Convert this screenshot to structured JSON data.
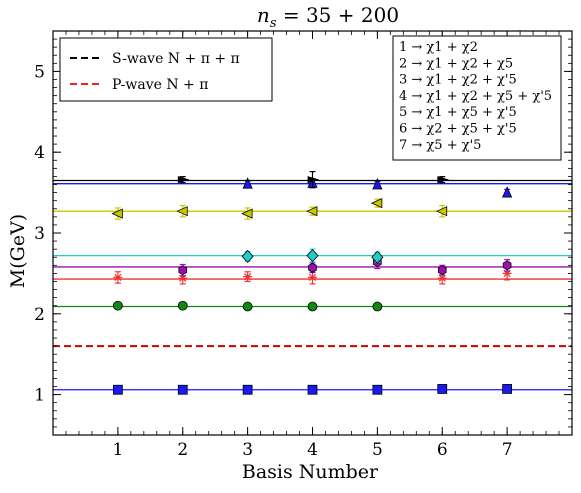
{
  "chart_data": {
    "type": "scatter",
    "title": "n_s = 35 + 200",
    "xlabel": "Basis Number",
    "ylabel": "M(GeV)",
    "xlim": [
      0,
      8
    ],
    "ylim": [
      0.5,
      5.5
    ],
    "xticks": [
      1,
      2,
      3,
      4,
      5,
      6,
      7
    ],
    "yticks": [
      1,
      2,
      3,
      4,
      5
    ],
    "grid": false,
    "reference_lines": [
      {
        "name": "S-wave N + π + π",
        "y": 1.6,
        "color": "#cc0000",
        "dashed": true,
        "legend_color": "#000000"
      },
      {
        "name": "P-wave N + π",
        "y": 1.6,
        "color": "#cc0000",
        "dashed": true,
        "legend_color": "#ee2222"
      }
    ],
    "legend_placement": "top-left",
    "basis_definitions": [
      "1 → χ1 + χ2",
      "2 → χ1 + χ2 + χ5",
      "3 → χ1 + χ2 + χ'5",
      "4 → χ1 + χ2 + χ5 + χ'5",
      "5 → χ1 + χ5 + χ'5",
      "6 → χ2 + χ5 + χ'5",
      "7 → χ5 + χ'5"
    ],
    "basis_box_placement": "top-right",
    "series": [
      {
        "fit": 1.06,
        "color": "#1a1aee",
        "marker": "square",
        "points": [
          [
            1,
            1.06,
            0.015
          ],
          [
            2,
            1.06,
            0.015
          ],
          [
            3,
            1.06,
            0.015
          ],
          [
            4,
            1.06,
            0.015
          ],
          [
            5,
            1.06,
            0.015
          ],
          [
            6,
            1.07,
            0.015
          ],
          [
            7,
            1.07,
            0.015
          ]
        ]
      },
      {
        "fit": 2.09,
        "color": "#118811",
        "marker": "circle",
        "points": [
          [
            1,
            2.1,
            0.02
          ],
          [
            2,
            2.1,
            0.02
          ],
          [
            3,
            2.09,
            0.02
          ],
          [
            4,
            2.09,
            0.02
          ],
          [
            5,
            2.09,
            0.02
          ]
        ]
      },
      {
        "fit": 2.43,
        "color": "#ee3333",
        "marker": "star",
        "points": [
          [
            1,
            2.45,
            0.07
          ],
          [
            2,
            2.44,
            0.07
          ],
          [
            3,
            2.46,
            0.06
          ],
          [
            4,
            2.45,
            0.08
          ],
          [
            6,
            2.44,
            0.07
          ],
          [
            7,
            2.5,
            0.08
          ]
        ]
      },
      {
        "fit": 2.58,
        "color": "#9911aa",
        "marker": "hexagon",
        "points": [
          [
            2,
            2.54,
            0.07
          ],
          [
            4,
            2.57,
            0.06
          ],
          [
            5,
            2.64,
            0.08
          ],
          [
            6,
            2.54,
            0.06
          ],
          [
            7,
            2.6,
            0.07
          ]
        ]
      },
      {
        "fit": 2.72,
        "color": "#22cccc",
        "marker": "diamond",
        "points": [
          [
            3,
            2.71,
            0.06
          ],
          [
            4,
            2.72,
            0.08
          ],
          [
            5,
            2.7,
            0.06
          ]
        ]
      },
      {
        "fit": 3.27,
        "color": "#c8c800",
        "marker": "triangle-left",
        "points": [
          [
            1,
            3.24,
            0.07
          ],
          [
            2,
            3.27,
            0.07
          ],
          [
            3,
            3.24,
            0.07
          ],
          [
            4,
            3.27,
            0.05
          ],
          [
            5,
            3.37,
            0.05
          ],
          [
            6,
            3.27,
            0.07
          ]
        ]
      },
      {
        "fit": 3.61,
        "color": "#1a1aee",
        "marker": "triangle-up",
        "points": [
          [
            3,
            3.61,
            0.03
          ],
          [
            4,
            3.62,
            0.05
          ],
          [
            5,
            3.6,
            0.03
          ],
          [
            7,
            3.5,
            0.04
          ]
        ]
      },
      {
        "fit": 3.65,
        "color": "#000000",
        "marker": "triangle-right",
        "points": [
          [
            2,
            3.66,
            0.02
          ],
          [
            4,
            3.66,
            0.1
          ],
          [
            6,
            3.66,
            0.02
          ]
        ]
      }
    ]
  }
}
